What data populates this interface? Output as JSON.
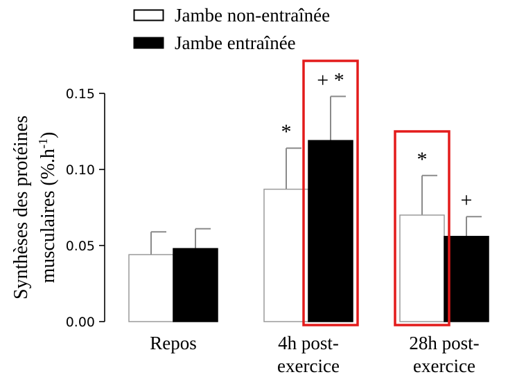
{
  "chart_data": {
    "type": "bar",
    "categories": [
      [
        "Repos"
      ],
      [
        "4h post-",
        "exercice"
      ],
      [
        "28h post-",
        "exercice"
      ]
    ],
    "series": [
      {
        "name": "Jambe non-entraînée",
        "color": "#ffffff",
        "values": [
          0.044,
          0.087,
          0.07
        ],
        "errors": [
          0.015,
          0.027,
          0.026
        ]
      },
      {
        "name": "Jambe entraînée",
        "color": "#000000",
        "values": [
          0.048,
          0.119,
          0.056
        ],
        "errors": [
          0.013,
          0.029,
          0.013
        ]
      }
    ],
    "ylabel": [
      "Synthèses des protéines",
      "musculaires (%.h",
      "-1",
      ")"
    ],
    "ylim": [
      0,
      0.15
    ],
    "yticks": [
      "0.00",
      "0.05",
      "0.10",
      "0.15"
    ],
    "legend_position": "top",
    "annotations": [
      {
        "category": 1,
        "series": 0,
        "text": "*"
      },
      {
        "category": 1,
        "series": 1,
        "text": "+ *"
      },
      {
        "category": 2,
        "series": 0,
        "text": "*"
      },
      {
        "category": 2,
        "series": 1,
        "text": "+"
      }
    ],
    "highlight_color": "#e31b1b",
    "highlights": [
      {
        "category": 1,
        "series": 1
      },
      {
        "category": 2,
        "series": 0
      }
    ]
  }
}
